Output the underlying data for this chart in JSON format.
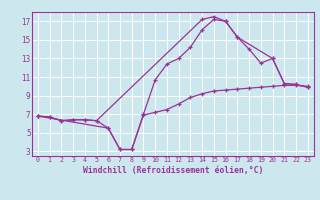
{
  "bg_color": "#cce8ee",
  "grid_color": "#aadddd",
  "line_color": "#993399",
  "xlabel": "Windchill (Refroidissement éolien,°C)",
  "xlim": [
    -0.5,
    23.5
  ],
  "ylim": [
    2.5,
    18
  ],
  "xticks": [
    0,
    1,
    2,
    3,
    4,
    5,
    6,
    7,
    8,
    9,
    10,
    11,
    12,
    13,
    14,
    15,
    16,
    17,
    18,
    19,
    20,
    21,
    22,
    23
  ],
  "yticks": [
    3,
    5,
    7,
    9,
    11,
    13,
    15,
    17
  ],
  "line1_x": [
    0,
    1,
    2,
    3,
    4,
    5,
    6,
    7,
    8,
    9,
    10,
    11,
    12,
    13,
    14,
    15,
    16,
    17,
    18,
    19,
    20,
    21,
    22,
    23
  ],
  "line1_y": [
    6.8,
    6.7,
    6.3,
    6.4,
    6.4,
    6.3,
    5.5,
    3.2,
    3.2,
    6.9,
    7.2,
    7.5,
    8.1,
    8.8,
    9.2,
    9.5,
    9.6,
    9.7,
    9.8,
    9.9,
    10.0,
    10.1,
    10.1,
    10.0
  ],
  "line2_x": [
    0,
    1,
    2,
    3,
    4,
    5,
    14,
    15,
    16,
    17,
    20,
    21,
    22,
    23
  ],
  "line2_y": [
    6.8,
    6.7,
    6.3,
    6.4,
    6.4,
    6.3,
    17.2,
    17.5,
    17.0,
    15.3,
    13.0,
    10.3,
    10.2,
    9.9
  ],
  "line3_x": [
    0,
    6,
    7,
    8,
    9,
    10,
    11,
    12,
    13,
    14,
    15,
    16,
    17,
    18,
    19,
    20,
    21,
    22,
    23
  ],
  "line3_y": [
    6.8,
    5.5,
    3.2,
    3.2,
    7.0,
    10.7,
    12.4,
    13.0,
    14.2,
    16.1,
    17.2,
    17.0,
    15.3,
    14.0,
    12.5,
    13.0,
    10.3,
    10.2,
    9.9
  ]
}
